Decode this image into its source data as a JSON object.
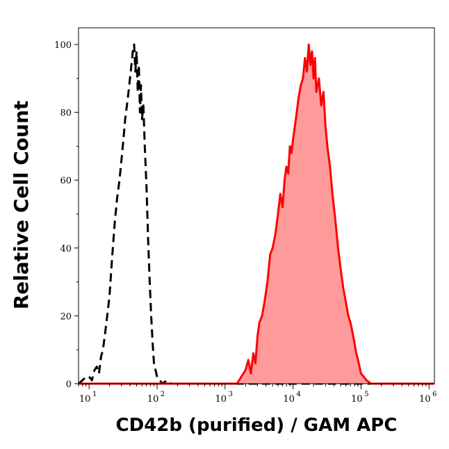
{
  "chart_data": {
    "type": "area",
    "xlabel": "CD42b (purified) / GAM APC",
    "ylabel": "Relative Cell Count",
    "x_scale": "log",
    "xlim": [
      7,
      1200000
    ],
    "ylim": [
      0,
      105
    ],
    "x_ticks": [
      {
        "value": 10,
        "base": "10",
        "exp": "1"
      },
      {
        "value": 100,
        "base": "10",
        "exp": "2"
      },
      {
        "value": 1000,
        "base": "10",
        "exp": "3"
      },
      {
        "value": 10000,
        "base": "10",
        "exp": "4"
      },
      {
        "value": 100000,
        "base": "10",
        "exp": "5"
      },
      {
        "value": 1000000,
        "base": "10",
        "exp": "6"
      }
    ],
    "y_ticks": [
      {
        "value": 0,
        "label": "0"
      },
      {
        "value": 20,
        "label": "20"
      },
      {
        "value": 40,
        "label": "40"
      },
      {
        "value": 60,
        "label": "60"
      },
      {
        "value": 80,
        "label": "80"
      },
      {
        "value": 100,
        "label": "100"
      }
    ],
    "grid": false,
    "series": [
      {
        "style": "dashed",
        "color": "#000000",
        "fill": "none",
        "x": [
          7,
          8,
          9,
          10,
          11,
          12,
          13,
          14,
          15,
          16,
          17,
          18,
          19,
          20,
          22,
          24,
          26,
          28,
          30,
          32,
          34,
          36,
          38,
          40,
          42,
          44,
          46,
          48,
          50,
          52,
          54,
          56,
          58,
          60,
          63,
          66,
          70,
          74,
          78,
          82,
          86,
          90,
          95,
          100,
          110,
          120,
          140,
          160,
          200,
          300,
          1000,
          1200000
        ],
        "y": [
          0,
          1,
          2,
          2,
          1,
          4,
          5,
          3,
          8,
          10,
          14,
          18,
          22,
          26,
          38,
          48,
          55,
          60,
          66,
          72,
          78,
          82,
          86,
          90,
          94,
          98,
          100,
          92,
          98,
          86,
          94,
          80,
          88,
          78,
          82,
          70,
          58,
          42,
          30,
          20,
          12,
          6,
          4,
          2,
          1,
          0,
          1,
          0,
          0,
          0,
          0,
          0
        ]
      },
      {
        "style": "solid",
        "color": "#ff0000",
        "fill": "#ff9a9a",
        "x": [
          7,
          1000,
          1500,
          2000,
          2200,
          2400,
          2600,
          2800,
          3000,
          3200,
          3500,
          3800,
          4200,
          4600,
          5000,
          5500,
          6000,
          6500,
          7000,
          7500,
          8000,
          8500,
          9000,
          9500,
          10000,
          11000,
          12000,
          13000,
          14000,
          15000,
          16000,
          17000,
          18000,
          19000,
          20000,
          21000,
          22000,
          24000,
          26000,
          28000,
          30000,
          32000,
          35000,
          38000,
          42000,
          46000,
          50000,
          55000,
          60000,
          65000,
          70000,
          75000,
          80000,
          85000,
          90000,
          95000,
          100000,
          110000,
          120000,
          140000,
          200000,
          1200000
        ],
        "y": [
          0,
          0,
          0,
          4,
          7,
          3,
          9,
          6,
          14,
          18,
          20,
          24,
          30,
          38,
          40,
          44,
          50,
          56,
          52,
          60,
          64,
          62,
          70,
          68,
          72,
          78,
          84,
          88,
          90,
          96,
          92,
          100,
          94,
          98,
          90,
          96,
          86,
          90,
          82,
          86,
          76,
          70,
          64,
          56,
          48,
          40,
          34,
          28,
          24,
          20,
          18,
          15,
          12,
          9,
          7,
          5,
          3,
          2,
          1,
          0,
          0,
          0
        ]
      }
    ]
  }
}
